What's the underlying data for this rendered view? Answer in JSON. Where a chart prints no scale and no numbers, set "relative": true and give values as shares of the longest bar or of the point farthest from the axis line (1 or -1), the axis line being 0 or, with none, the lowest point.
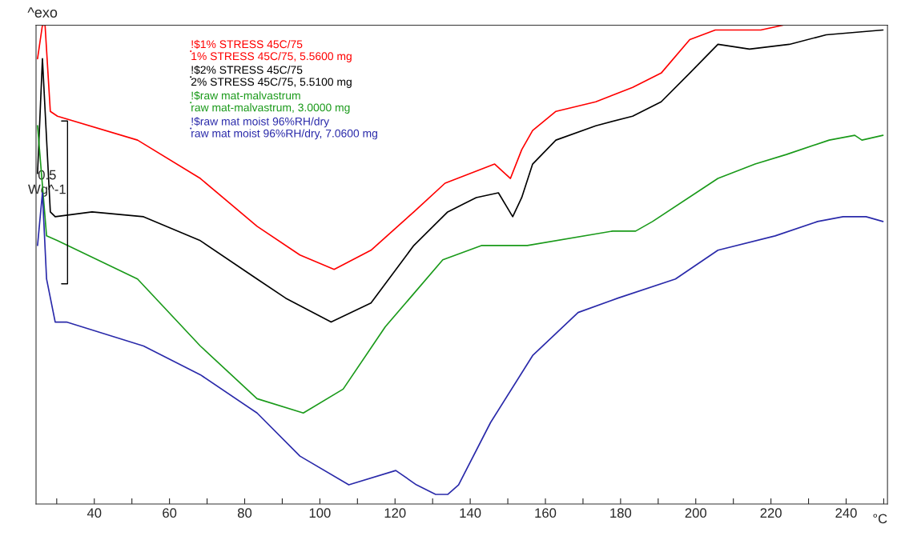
{
  "chart_data": {
    "type": "line",
    "relative": true,
    "xlabel": "°C",
    "xlim": [
      24.5,
      251
    ],
    "xticks": [
      {
        "value": 30,
        "label": null
      },
      40,
      {
        "value": 50,
        "label": null
      },
      60,
      {
        "value": 70,
        "label": null
      },
      80,
      {
        "value": 90,
        "label": null
      },
      100,
      {
        "value": 110,
        "label": null
      },
      120,
      {
        "value": 130,
        "label": null
      },
      140,
      {
        "value": 150,
        "label": null
      },
      160,
      {
        "value": 170,
        "label": null
      },
      180,
      {
        "value": 190,
        "label": null
      },
      200,
      {
        "value": 210,
        "label": null
      },
      220,
      {
        "value": 230,
        "label": null
      },
      240,
      {
        "value": 250,
        "label": null
      }
    ],
    "legend": "top",
    "line_style": "solid",
    "marker": "none",
    "annotations": [
      "^exo",
      "0.5\nWg^-1"
    ],
    "series": [
      {
        "name": "!$1% STRESS 45C/75\n1% STRESS 45C/75, 5.5600 mg",
        "color": "#ff0000",
        "x": [
          24.9,
          26.2,
          26.9,
          28.3,
          30.2,
          51.5,
          68.2,
          83.3,
          94.7,
          103.8,
          113.6,
          125.0,
          133.3,
          146.5,
          150.7,
          153.7,
          156.6,
          162.8,
          173.4,
          183.2,
          190.8,
          198.4,
          205.2,
          212.0,
          217.3,
          223.2
        ],
        "values": [
          0.93,
          1.0,
          1.0,
          0.82,
          0.81,
          0.76,
          0.68,
          0.58,
          0.52,
          0.49,
          0.53,
          0.61,
          0.67,
          0.71,
          0.68,
          0.74,
          0.78,
          0.82,
          0.84,
          0.87,
          0.9,
          0.97,
          0.99,
          0.99,
          0.99,
          1.0
        ]
      },
      {
        "name": "!$2% STRESS 45C/75\n2% STRESS 45C/75, 5.5100 mg",
        "color": "#000000",
        "x": [
          24.9,
          26.2,
          28.3,
          29.6,
          39.4,
          53.1,
          68.2,
          83.3,
          90.9,
          103.0,
          113.6,
          125.0,
          134.0,
          141.6,
          147.5,
          151.3,
          153.7,
          156.6,
          162.8,
          173.4,
          183.2,
          190.8,
          198.4,
          205.9,
          214.3,
          224.9,
          234.7,
          249.8
        ],
        "values": [
          0.69,
          0.93,
          0.61,
          0.6,
          0.61,
          0.6,
          0.55,
          0.47,
          0.43,
          0.38,
          0.42,
          0.54,
          0.61,
          0.64,
          0.65,
          0.6,
          0.64,
          0.71,
          0.76,
          0.79,
          0.81,
          0.84,
          0.9,
          0.96,
          0.95,
          0.96,
          0.98,
          0.99
        ]
      },
      {
        "name": "!$raw mat-malvastrum\nraw mat-malvastrum, 3.0000 mg",
        "color": "#1a9a1a",
        "x": [
          24.9,
          27.3,
          30.2,
          51.5,
          68.2,
          83.3,
          95.6,
          106.2,
          117.4,
          132.7,
          143.1,
          155.2,
          177.9,
          184.0,
          188.5,
          205.9,
          215.8,
          224.1,
          235.5,
          242.3,
          244.2,
          249.8
        ],
        "values": [
          0.79,
          0.56,
          0.55,
          0.47,
          0.33,
          0.22,
          0.19,
          0.24,
          0.37,
          0.51,
          0.54,
          0.54,
          0.57,
          0.57,
          0.59,
          0.68,
          0.71,
          0.73,
          0.76,
          0.77,
          0.76,
          0.77
        ]
      },
      {
        "name": "!$raw mat moist 96%RH/dry\nraw mat moist 96%RH/dry, 7.0600 mg",
        "color": "#2a2aaa",
        "x": [
          24.9,
          26.2,
          27.3,
          29.6,
          32.6,
          53.1,
          68.2,
          83.3,
          94.7,
          107.7,
          120.2,
          125.7,
          130.8,
          134.0,
          136.9,
          145.4,
          156.6,
          168.7,
          179.3,
          194.6,
          205.9,
          221.1,
          232.4,
          239.2,
          245.3,
          249.8
        ],
        "values": [
          0.54,
          0.65,
          0.47,
          0.38,
          0.38,
          0.33,
          0.27,
          0.19,
          0.1,
          0.04,
          0.07,
          0.04,
          0.02,
          0.02,
          0.04,
          0.17,
          0.31,
          0.4,
          0.43,
          0.47,
          0.53,
          0.56,
          0.59,
          0.6,
          0.6,
          0.59
        ]
      }
    ]
  }
}
